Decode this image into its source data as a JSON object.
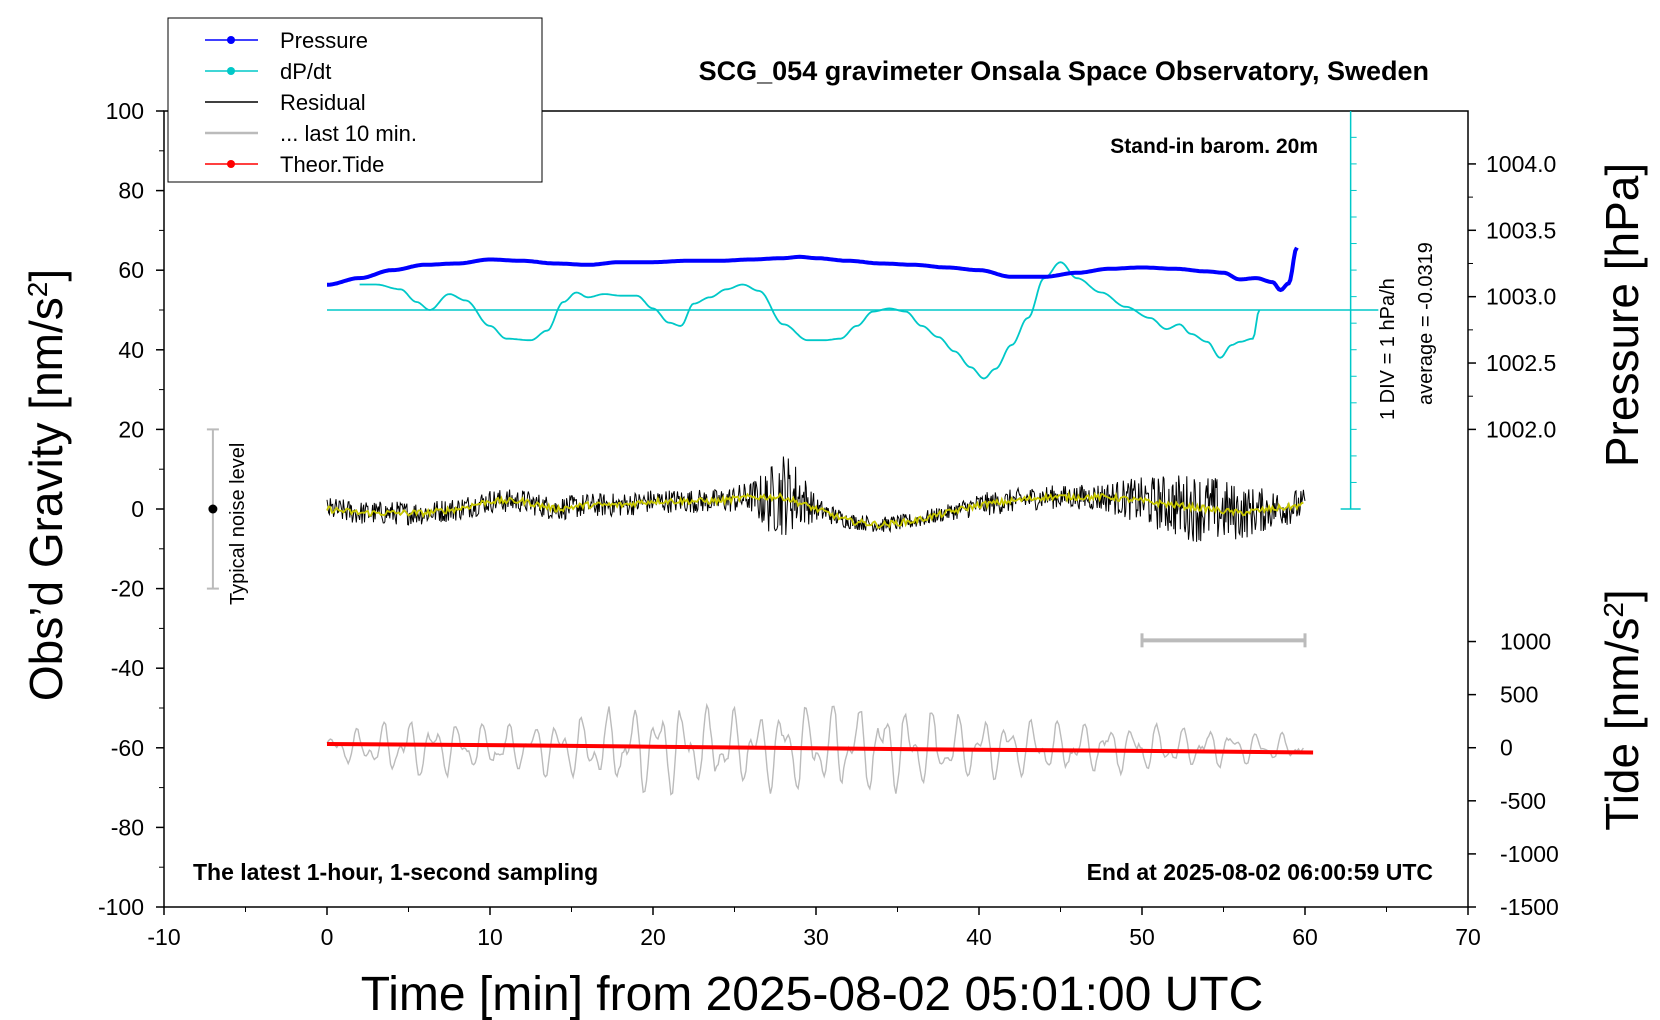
{
  "chart_data": {
    "type": "line",
    "title": "SCG_054 gravimeter Onsala Space Observatory, Sweden",
    "xlabel": "Time [min] from 2025-08-02 05:01:00 UTC",
    "ylabel_main": "Obs’d Gravity [nm/s",
    "ylabel_main_sup": "2",
    "ylabel_main_end": "]",
    "ylabel_pressure": "Pressure [hPa]",
    "ylabel_tide": "Tide [nm/s",
    "ylabel_tide_sup": "2",
    "ylabel_tide_end": "]",
    "xlim": [
      -10,
      70
    ],
    "ylim": [
      -100,
      100
    ],
    "x_ticks": [
      "-10",
      "0",
      "10",
      "20",
      "30",
      "40",
      "50",
      "60",
      "70"
    ],
    "y_ticks": [
      "100",
      "80",
      "60",
      "40",
      "20",
      "0",
      "-20",
      "-40",
      "-60",
      "-80",
      "-100"
    ],
    "pressure_axis": {
      "ticks": [
        "1004.0",
        "1003.5",
        "1003.0",
        "1002.5",
        "1002.0"
      ],
      "range_hpa": [
        1002.0,
        1004.0
      ],
      "gravity_equivalent": [
        20,
        86.7
      ]
    },
    "tide_axis": {
      "ticks": [
        "1000",
        "500",
        "0",
        "-500",
        "-1000",
        "-1500"
      ],
      "range": [
        -1500,
        1000
      ],
      "gravity_equivalent": [
        -100,
        -33.3
      ]
    },
    "annotations": {
      "barometer": "Stand-in barom. 20m",
      "dpdt_scale": "1 DIV = 1 hPa/h",
      "dpdt_average": "average = -0.0319",
      "noise": "Typical noise level",
      "bottom_left": "The latest 1-hour, 1-second sampling",
      "bottom_right": "End at 2025-08-02 06:00:59 UTC"
    },
    "legend": [
      {
        "name": "Pressure",
        "color": "#0000ff",
        "marker": true
      },
      {
        "name": "dP/dt",
        "color": "#00c8c8",
        "marker": true
      },
      {
        "name": "Residual",
        "color": "#000000",
        "marker": false
      },
      {
        "name": "... last 10 min.",
        "color": "#bbbbbb",
        "marker": false
      },
      {
        "name": "Theor.Tide",
        "color": "#ff0000",
        "marker": true
      }
    ],
    "series": [
      {
        "name": "Pressure",
        "color": "#0000ff",
        "unit": "hPa",
        "x": [
          0,
          2,
          4,
          6,
          8,
          10,
          12,
          14,
          16,
          18,
          20,
          22,
          24,
          26,
          28,
          29,
          30,
          32,
          34,
          36,
          38,
          40,
          42,
          44,
          46,
          48,
          50,
          52,
          54,
          55,
          56,
          57,
          58,
          58.5,
          59,
          59.5
        ],
        "values": [
          1003.09,
          1003.14,
          1003.2,
          1003.24,
          1003.25,
          1003.28,
          1003.27,
          1003.25,
          1003.24,
          1003.26,
          1003.26,
          1003.27,
          1003.27,
          1003.28,
          1003.29,
          1003.3,
          1003.29,
          1003.27,
          1003.25,
          1003.24,
          1003.22,
          1003.2,
          1003.15,
          1003.15,
          1003.18,
          1003.21,
          1003.22,
          1003.21,
          1003.19,
          1003.18,
          1003.13,
          1003.14,
          1003.11,
          1003.05,
          1003.1,
          1003.37
        ]
      },
      {
        "name": "dP/dt",
        "color": "#00c8c8",
        "unit": "hPa/h (1 DIV = 1 hPa/h, zero at 50 nm/s²)",
        "x": [
          2,
          3,
          4.5,
          5.5,
          6.3,
          7.5,
          8.5,
          10,
          11,
          12.5,
          13.5,
          14.5,
          15.3,
          16,
          17,
          18,
          19,
          20,
          21,
          21.7,
          22.5,
          23.5,
          24.5,
          25.5,
          26.5,
          28,
          29.5,
          30.5,
          31.5,
          32.5,
          33.5,
          34.5,
          35.5,
          36.5,
          37.5,
          38.5,
          39.5,
          40.3,
          41,
          42,
          43,
          44,
          45,
          46,
          47.5,
          49,
          50.5,
          51.5,
          52.3,
          53,
          54,
          54.8,
          55.5,
          56,
          56.8,
          57.2
        ],
        "values": [
          1.6,
          1.6,
          1.3,
          0.5,
          0.0,
          1.0,
          0.6,
          -1.0,
          -1.8,
          -1.9,
          -1.3,
          0.5,
          1.1,
          0.8,
          1.0,
          0.9,
          0.9,
          0.1,
          -0.8,
          -1.0,
          0.4,
          0.8,
          1.3,
          1.6,
          1.2,
          -0.9,
          -1.9,
          -1.9,
          -1.8,
          -1.0,
          -0.1,
          0.1,
          -0.1,
          -1.0,
          -1.7,
          -2.6,
          -3.6,
          -4.3,
          -3.7,
          -2.2,
          -0.5,
          2.0,
          3.0,
          2.0,
          1.1,
          0.2,
          -0.5,
          -1.2,
          -0.9,
          -1.5,
          -2.0,
          -3.0,
          -2.2,
          -2.0,
          -1.8,
          0.0
        ]
      },
      {
        "name": "Residual",
        "color": "#000000",
        "unit": "nm/s²",
        "x": [
          0,
          2,
          4,
          6,
          8,
          10,
          12,
          14,
          16,
          18,
          20,
          22,
          24,
          26,
          27,
          28,
          29,
          30,
          32,
          34,
          36,
          38,
          40,
          42,
          44,
          46,
          48,
          50,
          52,
          54,
          56,
          58,
          60
        ],
        "values": [
          0,
          -1,
          -1,
          -1,
          0,
          2,
          2,
          0,
          1,
          1,
          2,
          2,
          2,
          3,
          2,
          4,
          3,
          0,
          -3,
          -4,
          -3,
          -1,
          1,
          2,
          3,
          3,
          3,
          2,
          1,
          0,
          -1,
          0,
          1
        ],
        "noise_amplitude": [
          3,
          3,
          3,
          3,
          3,
          3,
          3,
          3,
          3,
          3,
          3,
          3,
          3,
          4,
          8,
          11,
          8,
          3,
          2,
          2,
          2,
          2,
          3,
          3,
          3,
          3,
          4,
          6,
          8,
          9,
          7,
          5,
          4
        ]
      },
      {
        "name": "Residual (yellow smoothed)",
        "color": "#c8c800",
        "unit": "nm/s²",
        "x": [
          0,
          2,
          4,
          6,
          8,
          10,
          12,
          14,
          16,
          18,
          20,
          22,
          24,
          26,
          28,
          30,
          32,
          34,
          36,
          38,
          40,
          42,
          44,
          46,
          48,
          50,
          52,
          54,
          56,
          58,
          60
        ],
        "values": [
          0,
          -1,
          -1,
          -1,
          0,
          2,
          2,
          0,
          1,
          1,
          2,
          2,
          2,
          3,
          3,
          0,
          -3,
          -4,
          -3,
          -1,
          1,
          2,
          3,
          3,
          3,
          2,
          1,
          0,
          -1,
          0,
          1
        ]
      },
      {
        "name": "... last 10 min.",
        "color": "#bbbbbb",
        "unit": "nm/s² (offset -60)",
        "x_range": [
          0,
          60
        ],
        "center": -60,
        "amplitude_envelope": {
          "x": [
            0,
            5,
            10,
            15,
            20,
            25,
            30,
            35,
            40,
            45,
            50,
            55,
            60
          ],
          "values": [
            3,
            8,
            6,
            8,
            12,
            10,
            12,
            11,
            8,
            7,
            6,
            5,
            3
          ]
        }
      },
      {
        "name": "Theor.Tide",
        "color": "#ff0000",
        "unit": "nm/s² (tide axis)",
        "x": [
          0,
          10,
          20,
          30,
          40,
          50,
          60.5
        ],
        "values": [
          35,
          25,
          10,
          -5,
          -20,
          -30,
          -45
        ]
      }
    ],
    "noise_bar": {
      "x": -7,
      "center": 0,
      "range": [
        -20,
        20
      ]
    },
    "gray_scale_bar": {
      "x_range": [
        50,
        60
      ],
      "y": -33
    }
  }
}
